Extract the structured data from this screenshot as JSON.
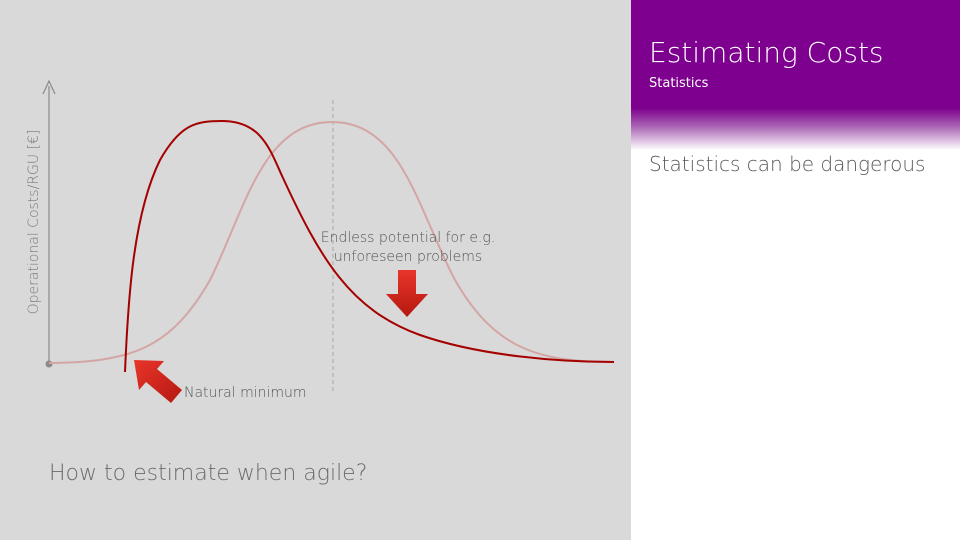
{
  "header": {
    "title": "Estimating Costs",
    "subtitle": "Statistics"
  },
  "content": {
    "statement": "Statistics can be dangerous"
  },
  "chart": {
    "y_axis_label": "Operational Costs/RGU [€]",
    "annotations": {
      "endless_potential": "Endless potential for e.g. unforeseen problems",
      "natural_minimum": "Natural minimum"
    }
  },
  "footer": {
    "question": "How to estimate when agile?"
  },
  "colors": {
    "accent_purple": "#7d008e",
    "skewed_curve": "#a50000",
    "normal_curve": "#d4a5a5",
    "arrow_red": "#d0231a",
    "panel_gray": "#d9d9d9"
  }
}
